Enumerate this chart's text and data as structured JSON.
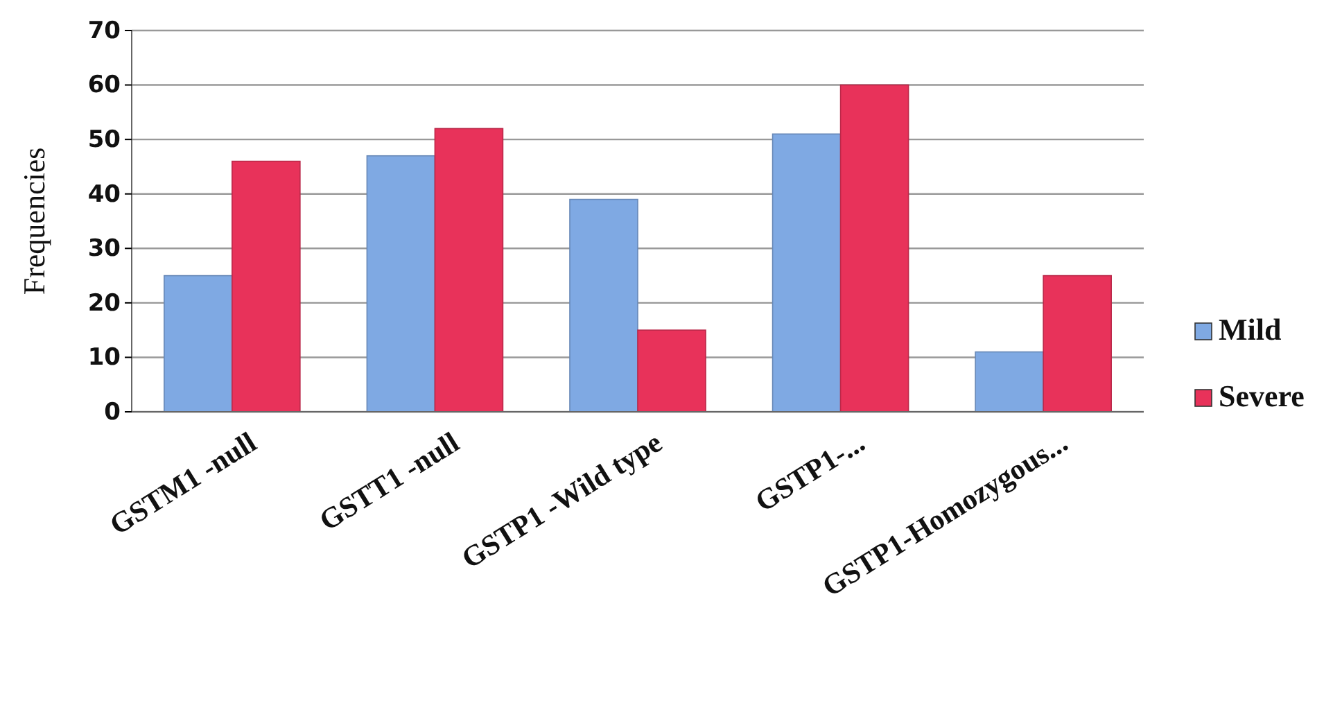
{
  "chart_data": {
    "type": "bar",
    "ylabel": "Frequencies",
    "categories": [
      "GSTM1 -null",
      "GSTT1 -null",
      "GSTP1 -Wild type",
      "GSTP1-...",
      "GSTP1-Homozygous..."
    ],
    "series": [
      {
        "name": "Mild",
        "color": "#7fa9e3",
        "values": [
          25,
          47,
          39,
          51,
          11
        ]
      },
      {
        "name": "Severe",
        "color": "#e8325a",
        "values": [
          46,
          52,
          15,
          60,
          25
        ]
      }
    ],
    "ylim": [
      0,
      70
    ],
    "yticks": [
      0,
      10,
      20,
      30,
      40,
      50,
      60,
      70
    ],
    "grid": "y",
    "legend": "right"
  }
}
